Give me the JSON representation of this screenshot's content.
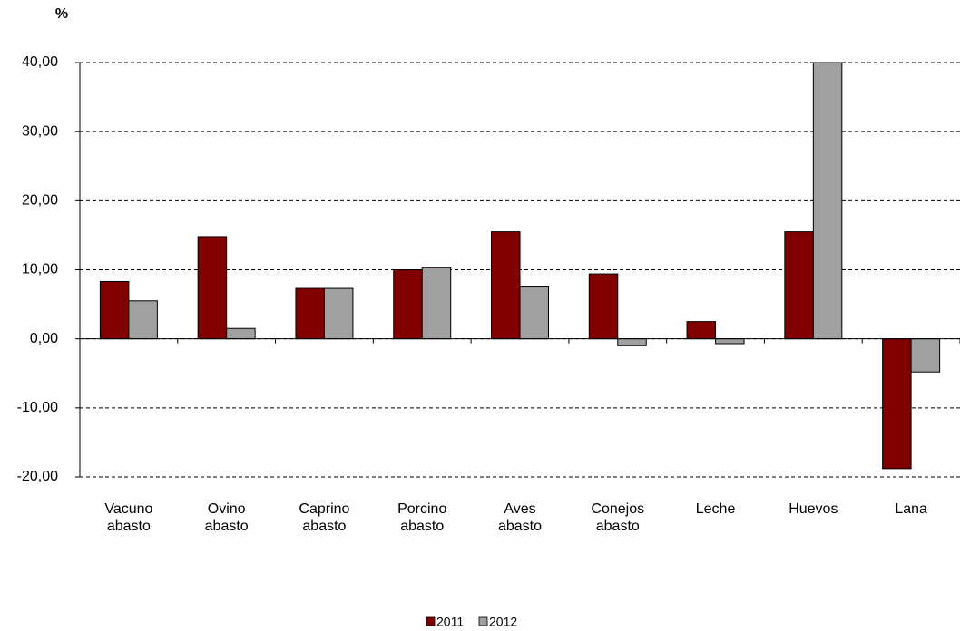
{
  "chart_data": {
    "type": "bar",
    "y_label": "%",
    "categories": [
      [
        "Vacuno",
        "abasto"
      ],
      [
        "Ovino",
        "abasto"
      ],
      [
        "Caprino",
        "abasto"
      ],
      [
        "Porcino",
        "abasto"
      ],
      [
        "Aves",
        "abasto"
      ],
      [
        "Conejos",
        "abasto"
      ],
      [
        "Leche"
      ],
      [
        "Huevos"
      ],
      [
        "Lana"
      ]
    ],
    "series": [
      {
        "name": "2011",
        "color": "#800000",
        "values": [
          8.3,
          14.8,
          7.3,
          10.0,
          15.5,
          9.4,
          2.5,
          15.5,
          -18.8
        ]
      },
      {
        "name": "2012",
        "color": "#a0a0a0",
        "values": [
          5.5,
          1.5,
          7.3,
          10.3,
          7.5,
          -1.0,
          -0.7,
          40.0,
          -4.8
        ]
      }
    ],
    "ylim": [
      -20,
      40
    ],
    "yticks": [
      {
        "value": -20,
        "label": "-20,00"
      },
      {
        "value": -10,
        "label": "-10,00"
      },
      {
        "value": 0,
        "label": "0,00"
      },
      {
        "value": 10,
        "label": "10,00"
      },
      {
        "value": 20,
        "label": "20,00"
      },
      {
        "value": 30,
        "label": "30,00"
      },
      {
        "value": 40,
        "label": "40,00"
      }
    ],
    "grid": true,
    "legend": "bottom"
  }
}
